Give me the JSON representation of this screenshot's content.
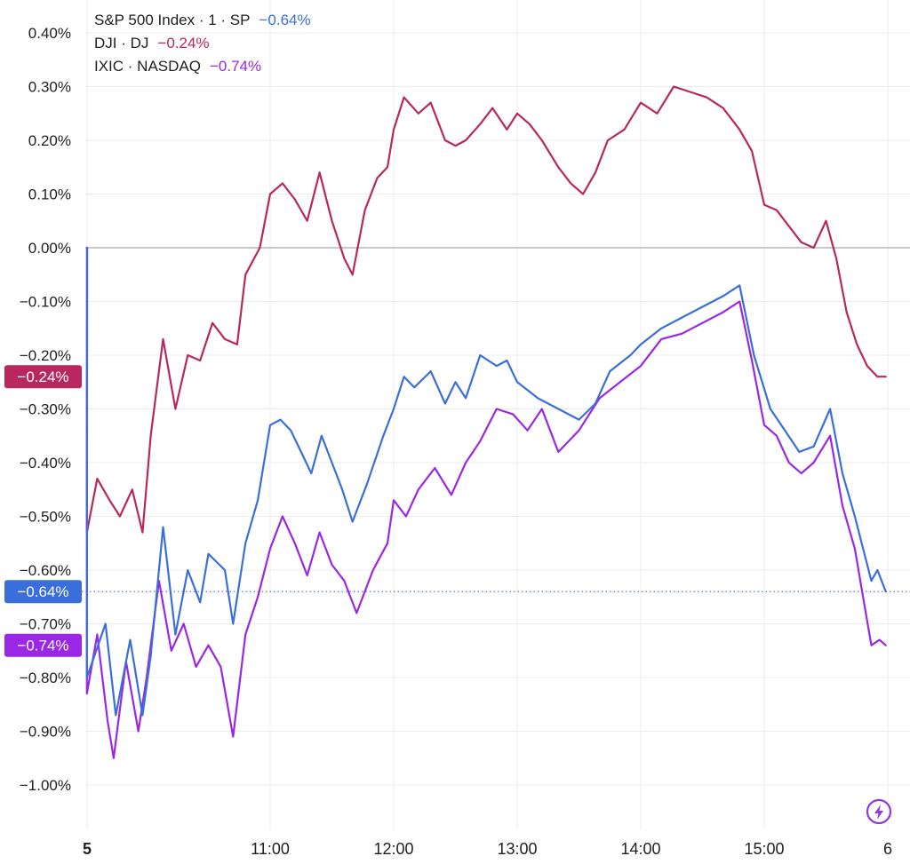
{
  "chart_data": {
    "type": "line",
    "y_unit": "%",
    "ylim": [
      -1.0,
      0.4
    ],
    "y_ticks": [
      "0.40%",
      "0.30%",
      "0.20%",
      "0.10%",
      "0.00%",
      "-0.10%",
      "-0.20%",
      "-0.30%",
      "-0.40%",
      "-0.50%",
      "-0.60%",
      "-0.70%",
      "-0.80%",
      "-0.90%",
      "-1.00%"
    ],
    "x_ticks": [
      "5",
      "11:00",
      "12:00",
      "13:00",
      "14:00",
      "15:00",
      "6"
    ],
    "grid": true,
    "legend_position": "top-left",
    "series": [
      {
        "name": "S&P 500 Index · 1 · SP",
        "color": "#3a6fdb",
        "last_label": "−0.64%",
        "last_value": -0.64,
        "points": [
          [
            "09:30",
            0.0
          ],
          [
            "09:31",
            -0.8
          ],
          [
            "09:40",
            -0.7
          ],
          [
            "09:45",
            -0.87
          ],
          [
            "09:52",
            -0.73
          ],
          [
            "09:58",
            -0.87
          ],
          [
            "10:02",
            -0.76
          ],
          [
            "10:08",
            -0.52
          ],
          [
            "10:14",
            -0.72
          ],
          [
            "10:20",
            -0.6
          ],
          [
            "10:26",
            -0.66
          ],
          [
            "10:30",
            -0.57
          ],
          [
            "10:38",
            -0.6
          ],
          [
            "10:42",
            -0.7
          ],
          [
            "10:48",
            -0.55
          ],
          [
            "10:54",
            -0.47
          ],
          [
            "11:00",
            -0.33
          ],
          [
            "11:05",
            -0.32
          ],
          [
            "11:10",
            -0.34
          ],
          [
            "11:15",
            -0.38
          ],
          [
            "11:20",
            -0.42
          ],
          [
            "11:25",
            -0.35
          ],
          [
            "11:30",
            -0.4
          ],
          [
            "11:35",
            -0.45
          ],
          [
            "11:40",
            -0.51
          ],
          [
            "11:47",
            -0.44
          ],
          [
            "11:55",
            -0.35
          ],
          [
            "12:00",
            -0.3
          ],
          [
            "12:05",
            -0.24
          ],
          [
            "12:10",
            -0.26
          ],
          [
            "12:18",
            -0.23
          ],
          [
            "12:25",
            -0.29
          ],
          [
            "12:30",
            -0.25
          ],
          [
            "12:35",
            -0.28
          ],
          [
            "12:42",
            -0.2
          ],
          [
            "12:50",
            -0.22
          ],
          [
            "12:55",
            -0.21
          ],
          [
            "13:00",
            -0.25
          ],
          [
            "13:10",
            -0.28
          ],
          [
            "13:20",
            -0.3
          ],
          [
            "13:30",
            -0.32
          ],
          [
            "13:38",
            -0.29
          ],
          [
            "13:45",
            -0.23
          ],
          [
            "13:55",
            -0.2
          ],
          [
            "14:00",
            -0.18
          ],
          [
            "14:10",
            -0.15
          ],
          [
            "14:20",
            -0.13
          ],
          [
            "14:30",
            -0.11
          ],
          [
            "14:40",
            -0.09
          ],
          [
            "14:48",
            -0.07
          ],
          [
            "14:55",
            -0.2
          ],
          [
            "15:03",
            -0.3
          ],
          [
            "15:10",
            -0.34
          ],
          [
            "15:17",
            -0.38
          ],
          [
            "15:24",
            -0.37
          ],
          [
            "15:32",
            -0.3
          ],
          [
            "15:38",
            -0.42
          ],
          [
            "15:44",
            -0.5
          ],
          [
            "15:48",
            -0.56
          ],
          [
            "15:52",
            -0.62
          ],
          [
            "15:55",
            -0.6
          ],
          [
            "15:59",
            -0.64
          ]
        ]
      },
      {
        "name": "DJI · DJ",
        "color": "#b8285e",
        "last_label": "−0.24%",
        "last_value": -0.24,
        "points": [
          [
            "09:30",
            0.0
          ],
          [
            "09:31",
            -0.53
          ],
          [
            "09:36",
            -0.43
          ],
          [
            "09:42",
            -0.47
          ],
          [
            "09:47",
            -0.5
          ],
          [
            "09:53",
            -0.45
          ],
          [
            "09:58",
            -0.53
          ],
          [
            "10:02",
            -0.35
          ],
          [
            "10:08",
            -0.17
          ],
          [
            "10:14",
            -0.3
          ],
          [
            "10:20",
            -0.2
          ],
          [
            "10:26",
            -0.21
          ],
          [
            "10:32",
            -0.14
          ],
          [
            "10:38",
            -0.17
          ],
          [
            "10:44",
            -0.18
          ],
          [
            "10:48",
            -0.05
          ],
          [
            "10:55",
            0.0
          ],
          [
            "11:00",
            0.1
          ],
          [
            "11:06",
            0.12
          ],
          [
            "11:12",
            0.09
          ],
          [
            "11:18",
            0.05
          ],
          [
            "11:24",
            0.14
          ],
          [
            "11:30",
            0.05
          ],
          [
            "11:36",
            -0.02
          ],
          [
            "11:40",
            -0.05
          ],
          [
            "11:46",
            0.07
          ],
          [
            "11:52",
            0.13
          ],
          [
            "11:57",
            0.15
          ],
          [
            "12:00",
            0.22
          ],
          [
            "12:05",
            0.28
          ],
          [
            "12:12",
            0.25
          ],
          [
            "12:18",
            0.27
          ],
          [
            "12:25",
            0.2
          ],
          [
            "12:30",
            0.19
          ],
          [
            "12:35",
            0.2
          ],
          [
            "12:42",
            0.23
          ],
          [
            "12:48",
            0.26
          ],
          [
            "12:55",
            0.22
          ],
          [
            "13:00",
            0.25
          ],
          [
            "13:06",
            0.23
          ],
          [
            "13:12",
            0.2
          ],
          [
            "13:20",
            0.15
          ],
          [
            "13:26",
            0.12
          ],
          [
            "13:32",
            0.1
          ],
          [
            "13:38",
            0.14
          ],
          [
            "13:44",
            0.2
          ],
          [
            "13:52",
            0.22
          ],
          [
            "14:00",
            0.27
          ],
          [
            "14:08",
            0.25
          ],
          [
            "14:16",
            0.3
          ],
          [
            "14:24",
            0.29
          ],
          [
            "14:32",
            0.28
          ],
          [
            "14:40",
            0.26
          ],
          [
            "14:48",
            0.22
          ],
          [
            "14:54",
            0.18
          ],
          [
            "15:00",
            0.08
          ],
          [
            "15:06",
            0.07
          ],
          [
            "15:12",
            0.04
          ],
          [
            "15:18",
            0.01
          ],
          [
            "15:24",
            0.0
          ],
          [
            "15:30",
            0.05
          ],
          [
            "15:35",
            -0.02
          ],
          [
            "15:40",
            -0.12
          ],
          [
            "15:45",
            -0.18
          ],
          [
            "15:50",
            -0.22
          ],
          [
            "15:55",
            -0.24
          ],
          [
            "15:59",
            -0.24
          ]
        ]
      },
      {
        "name": "IXIC · NASDAQ",
        "color": "#9b27e6",
        "last_label": "−0.74%",
        "last_value": -0.74,
        "points": [
          [
            "09:30",
            0.0
          ],
          [
            "09:31",
            -0.83
          ],
          [
            "09:36",
            -0.72
          ],
          [
            "09:41",
            -0.88
          ],
          [
            "09:44",
            -0.95
          ],
          [
            "09:50",
            -0.77
          ],
          [
            "09:56",
            -0.9
          ],
          [
            "10:00",
            -0.8
          ],
          [
            "10:06",
            -0.62
          ],
          [
            "10:12",
            -0.75
          ],
          [
            "10:18",
            -0.7
          ],
          [
            "10:24",
            -0.78
          ],
          [
            "10:30",
            -0.74
          ],
          [
            "10:36",
            -0.78
          ],
          [
            "10:42",
            -0.91
          ],
          [
            "10:48",
            -0.72
          ],
          [
            "10:54",
            -0.65
          ],
          [
            "11:00",
            -0.56
          ],
          [
            "11:06",
            -0.5
          ],
          [
            "11:12",
            -0.55
          ],
          [
            "11:18",
            -0.61
          ],
          [
            "11:24",
            -0.53
          ],
          [
            "11:30",
            -0.59
          ],
          [
            "11:36",
            -0.62
          ],
          [
            "11:42",
            -0.68
          ],
          [
            "11:50",
            -0.6
          ],
          [
            "11:57",
            -0.55
          ],
          [
            "12:00",
            -0.47
          ],
          [
            "12:06",
            -0.5
          ],
          [
            "12:12",
            -0.45
          ],
          [
            "12:20",
            -0.41
          ],
          [
            "12:28",
            -0.46
          ],
          [
            "12:35",
            -0.4
          ],
          [
            "12:42",
            -0.36
          ],
          [
            "12:50",
            -0.3
          ],
          [
            "12:58",
            -0.31
          ],
          [
            "13:05",
            -0.34
          ],
          [
            "13:12",
            -0.3
          ],
          [
            "13:20",
            -0.38
          ],
          [
            "13:30",
            -0.34
          ],
          [
            "13:40",
            -0.28
          ],
          [
            "13:50",
            -0.25
          ],
          [
            "14:00",
            -0.22
          ],
          [
            "14:10",
            -0.17
          ],
          [
            "14:20",
            -0.16
          ],
          [
            "14:30",
            -0.14
          ],
          [
            "14:40",
            -0.12
          ],
          [
            "14:48",
            -0.1
          ],
          [
            "14:54",
            -0.21
          ],
          [
            "15:00",
            -0.33
          ],
          [
            "15:06",
            -0.35
          ],
          [
            "15:12",
            -0.4
          ],
          [
            "15:18",
            -0.42
          ],
          [
            "15:24",
            -0.4
          ],
          [
            "15:32",
            -0.35
          ],
          [
            "15:38",
            -0.48
          ],
          [
            "15:44",
            -0.56
          ],
          [
            "15:48",
            -0.65
          ],
          [
            "15:52",
            -0.74
          ],
          [
            "15:56",
            -0.73
          ],
          [
            "15:59",
            -0.74
          ]
        ]
      }
    ],
    "zero_line": 0.0,
    "current_value_line": -0.64
  }
}
